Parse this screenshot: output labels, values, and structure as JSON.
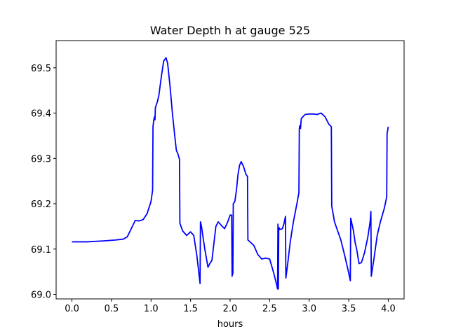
{
  "chart_data": {
    "type": "line",
    "title": "Water Depth h at gauge 525",
    "xlabel": "hours",
    "ylabel": "",
    "xlim": [
      -0.2,
      4.2
    ],
    "ylim": [
      68.99,
      69.56
    ],
    "xticks": [
      0.0,
      0.5,
      1.0,
      1.5,
      2.0,
      2.5,
      3.0,
      3.5,
      4.0
    ],
    "xtick_labels": [
      "0.0",
      "0.5",
      "1.0",
      "1.5",
      "2.0",
      "2.5",
      "3.0",
      "3.5",
      "4.0"
    ],
    "yticks": [
      69.0,
      69.1,
      69.2,
      69.3,
      69.4,
      69.5
    ],
    "ytick_labels": [
      "69.0",
      "69.1",
      "69.2",
      "69.3",
      "69.4",
      "69.5"
    ],
    "grid": false,
    "series": [
      {
        "name": "",
        "color": "#0000ff",
        "points": [
          [
            0.0,
            69.116
          ],
          [
            0.2,
            69.116
          ],
          [
            0.4,
            69.118
          ],
          [
            0.55,
            69.12
          ],
          [
            0.65,
            69.122
          ],
          [
            0.7,
            69.127
          ],
          [
            0.75,
            69.145
          ],
          [
            0.8,
            69.163
          ],
          [
            0.85,
            69.162
          ],
          [
            0.9,
            69.165
          ],
          [
            0.95,
            69.178
          ],
          [
            1.0,
            69.205
          ],
          [
            1.02,
            69.23
          ],
          [
            1.025,
            69.37
          ],
          [
            1.035,
            69.385
          ],
          [
            1.045,
            69.392
          ],
          [
            1.05,
            69.385
          ],
          [
            1.055,
            69.412
          ],
          [
            1.08,
            69.425
          ],
          [
            1.1,
            69.44
          ],
          [
            1.13,
            69.48
          ],
          [
            1.16,
            69.515
          ],
          [
            1.19,
            69.522
          ],
          [
            1.21,
            69.51
          ],
          [
            1.24,
            69.46
          ],
          [
            1.27,
            69.4
          ],
          [
            1.3,
            69.35
          ],
          [
            1.32,
            69.318
          ],
          [
            1.34,
            69.31
          ],
          [
            1.36,
            69.298
          ],
          [
            1.365,
            69.157
          ],
          [
            1.4,
            69.14
          ],
          [
            1.45,
            69.13
          ],
          [
            1.5,
            69.138
          ],
          [
            1.54,
            69.13
          ],
          [
            1.58,
            69.085
          ],
          [
            1.62,
            69.024
          ],
          [
            1.625,
            69.16
          ],
          [
            1.64,
            69.148
          ],
          [
            1.65,
            69.135
          ],
          [
            1.68,
            69.1
          ],
          [
            1.72,
            69.06
          ],
          [
            1.75,
            69.07
          ],
          [
            1.77,
            69.075
          ],
          [
            1.82,
            69.15
          ],
          [
            1.85,
            69.16
          ],
          [
            1.9,
            69.15
          ],
          [
            1.93,
            69.145
          ],
          [
            1.97,
            69.16
          ],
          [
            2.0,
            69.175
          ],
          [
            2.02,
            69.175
          ],
          [
            2.025,
            69.04
          ],
          [
            2.03,
            69.045
          ],
          [
            2.035,
            69.045
          ],
          [
            2.04,
            69.2
          ],
          [
            2.06,
            69.205
          ],
          [
            2.08,
            69.23
          ],
          [
            2.1,
            69.265
          ],
          [
            2.12,
            69.285
          ],
          [
            2.14,
            69.293
          ],
          [
            2.17,
            69.282
          ],
          [
            2.2,
            69.265
          ],
          [
            2.22,
            69.26
          ],
          [
            2.225,
            69.12
          ],
          [
            2.27,
            69.113
          ],
          [
            2.3,
            69.108
          ],
          [
            2.35,
            69.088
          ],
          [
            2.4,
            69.078
          ],
          [
            2.45,
            69.08
          ],
          [
            2.5,
            69.078
          ],
          [
            2.55,
            69.048
          ],
          [
            2.59,
            69.02
          ],
          [
            2.6,
            69.012
          ],
          [
            2.605,
            69.155
          ],
          [
            2.61,
            69.012
          ],
          [
            2.615,
            69.148
          ],
          [
            2.63,
            69.143
          ],
          [
            2.66,
            69.145
          ],
          [
            2.68,
            69.155
          ],
          [
            2.7,
            69.172
          ],
          [
            2.705,
            69.036
          ],
          [
            2.73,
            69.07
          ],
          [
            2.76,
            69.115
          ],
          [
            2.8,
            69.16
          ],
          [
            2.85,
            69.205
          ],
          [
            2.87,
            69.225
          ],
          [
            2.875,
            69.365
          ],
          [
            2.88,
            69.372
          ],
          [
            2.89,
            69.366
          ],
          [
            2.9,
            69.388
          ],
          [
            2.92,
            69.392
          ],
          [
            2.95,
            69.397
          ],
          [
            3.0,
            69.398
          ],
          [
            3.05,
            69.398
          ],
          [
            3.1,
            69.397
          ],
          [
            3.15,
            69.4
          ],
          [
            3.2,
            69.392
          ],
          [
            3.25,
            69.375
          ],
          [
            3.28,
            69.37
          ],
          [
            3.285,
            69.195
          ],
          [
            3.32,
            69.16
          ],
          [
            3.36,
            69.14
          ],
          [
            3.4,
            69.12
          ],
          [
            3.45,
            69.085
          ],
          [
            3.5,
            69.047
          ],
          [
            3.52,
            69.03
          ],
          [
            3.525,
            69.168
          ],
          [
            3.56,
            69.14
          ],
          [
            3.58,
            69.115
          ],
          [
            3.6,
            69.1
          ],
          [
            3.63,
            69.068
          ],
          [
            3.66,
            69.07
          ],
          [
            3.7,
            69.092
          ],
          [
            3.74,
            69.125
          ],
          [
            3.77,
            69.16
          ],
          [
            3.78,
            69.183
          ],
          [
            3.785,
            69.04
          ],
          [
            3.82,
            69.08
          ],
          [
            3.86,
            69.13
          ],
          [
            3.9,
            69.16
          ],
          [
            3.95,
            69.19
          ],
          [
            3.98,
            69.215
          ],
          [
            3.985,
            69.355
          ],
          [
            3.99,
            69.36
          ],
          [
            4.0,
            69.37
          ]
        ]
      }
    ]
  }
}
